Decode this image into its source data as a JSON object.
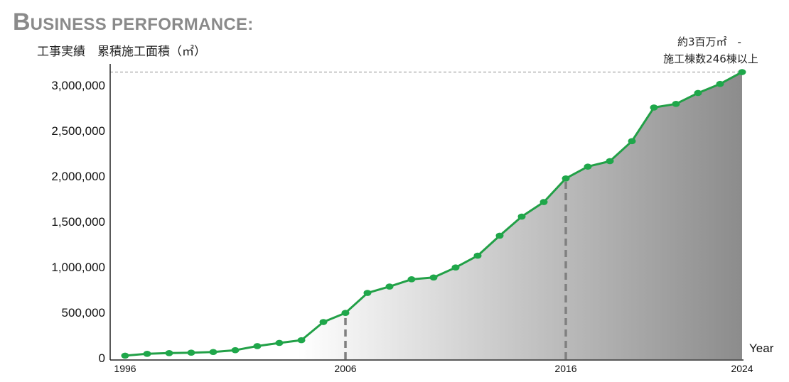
{
  "heading": {
    "cap": "B",
    "rest": "USINESS PERFORMANCE:"
  },
  "subheading": "工事実績　累積施工面積（㎡）",
  "annotation": {
    "line1": "約3百万㎡　-",
    "line2": "施工棟数246棟以上"
  },
  "colors": {
    "line": "#22a047",
    "marker": "#1fa74a",
    "area_light": "#ffffff",
    "area_dark": "#8c8c8c",
    "dashed_marker": "#808080",
    "reference_line": "#a6a6a6",
    "axis": "#222222"
  },
  "chart_data": {
    "type": "area",
    "title": "工事実績　累積施工面積（㎡）",
    "xlabel": "Year",
    "ylabel": "",
    "xlim": [
      1996,
      2024
    ],
    "ylim": [
      0,
      3200000
    ],
    "x_tick_labels": [
      "1996",
      "2006",
      "2016",
      "2024"
    ],
    "y_tick_labels": [
      "0",
      "500,000",
      "1,000,000",
      "1,500,000",
      "2,000,000",
      "2,500,000",
      "3,000,000"
    ],
    "y_tick_values": [
      0,
      500000,
      1000000,
      1500000,
      2000000,
      2500000,
      3000000
    ],
    "vertical_dashed_markers": [
      2006,
      2016
    ],
    "reference_line_value": 3160000,
    "grid": false,
    "legend": "none",
    "series": [
      {
        "x": [
          1996,
          1997,
          1998,
          1999,
          2000,
          2001,
          2002,
          2003,
          2004,
          2005,
          2006,
          2007,
          2008,
          2009,
          2010,
          2011,
          2012,
          2013,
          2014,
          2015,
          2016,
          2017,
          2018,
          2019,
          2020,
          2021,
          2022,
          2023,
          2024
        ],
        "values": [
          40000,
          60000,
          68000,
          73000,
          80000,
          100000,
          145000,
          180000,
          210000,
          410000,
          510000,
          730000,
          800000,
          880000,
          900000,
          1010000,
          1140000,
          1360000,
          1570000,
          1730000,
          1990000,
          2120000,
          2180000,
          2400000,
          2770000,
          2810000,
          2930000,
          3030000,
          3160000
        ]
      }
    ]
  }
}
